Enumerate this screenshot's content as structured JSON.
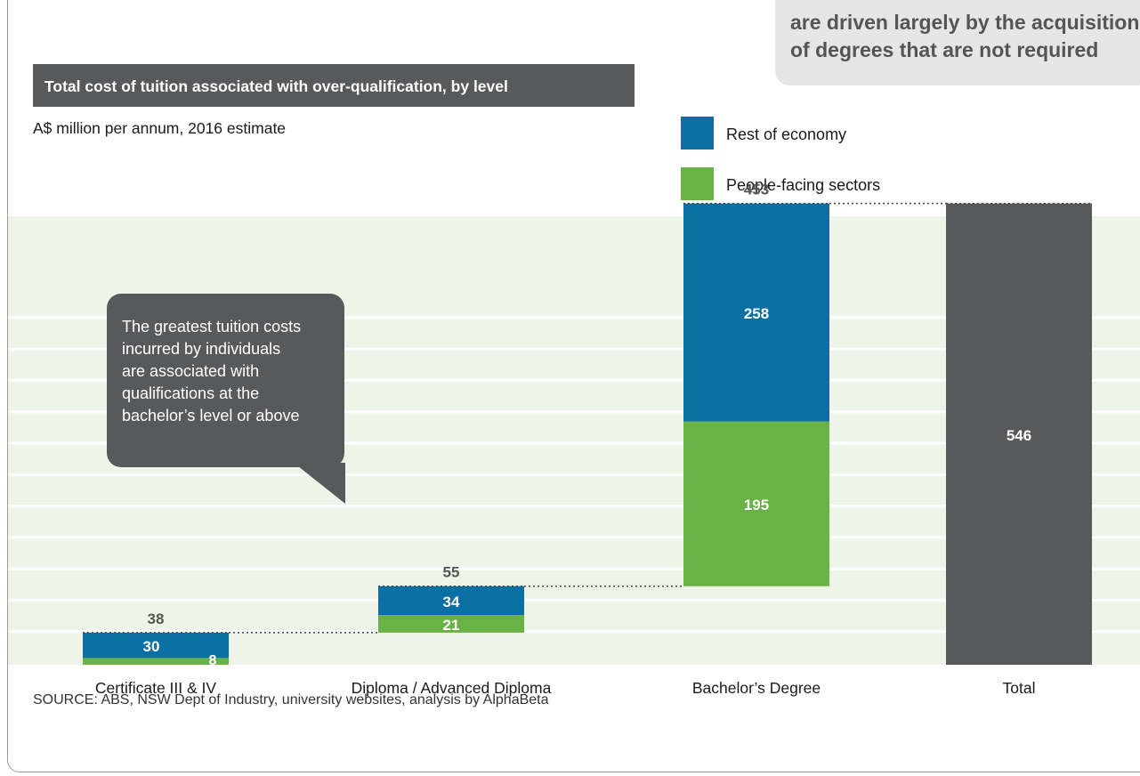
{
  "callout_top": {
    "lines": [
      "are driven largely by the acquisition",
      "of degrees that are not required"
    ]
  },
  "chart_data": {
    "type": "bar",
    "title": "Total cost of tuition associated with over-qualification, by level",
    "subtitle": "A$ million per annum, 2016 estimate",
    "categories": [
      "Certificate III & IV",
      "Diploma / Advanced Diploma",
      "Bachelor’s Degree",
      "Total"
    ],
    "series": [
      {
        "name": "Rest of economy",
        "color": "#0a6fa2",
        "values": [
          30,
          34,
          258,
          null
        ]
      },
      {
        "name": "People-facing sectors",
        "color": "#6ab245",
        "values": [
          8,
          21,
          195,
          null
        ]
      }
    ],
    "totals": [
      38,
      55,
      453,
      546
    ],
    "total_color": "#58595b",
    "ylim": [
      0,
      600
    ],
    "grid": true,
    "legend": "top-right",
    "waterfall": true
  },
  "annotation": {
    "lines": [
      "The greatest tuition costs",
      "incurred by individuals",
      "are associated with",
      "qualifications at the",
      "bachelor’s level or above"
    ]
  },
  "source": "SOURCE: ABS, NSW Dept of Industry, university websites, analysis by AlphaBeta",
  "colors": {
    "plot_background": "#eef5e8",
    "rest_of_economy": "#0a6fa2",
    "people_facing": "#6ab245",
    "dark": "#58595b"
  }
}
